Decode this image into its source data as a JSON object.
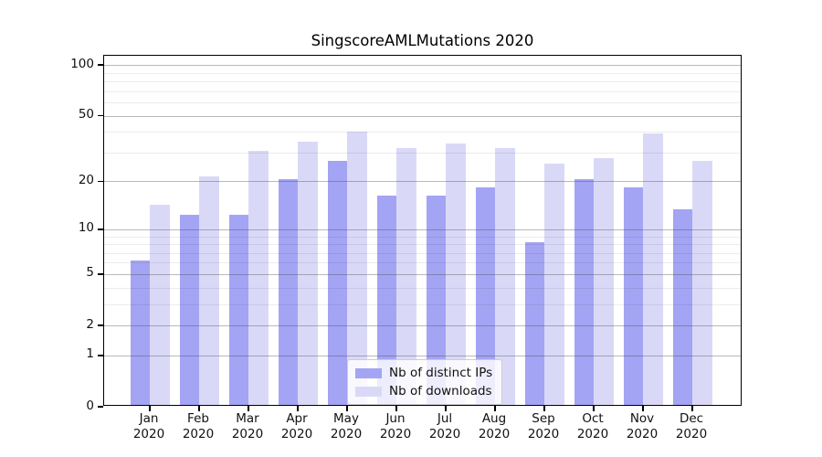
{
  "chart_data": {
    "type": "bar",
    "title": "SingscoreAMLMutations 2020",
    "categories": [
      "Jan",
      "Feb",
      "Mar",
      "Apr",
      "May",
      "Jun",
      "Jul",
      "Aug",
      "Sep",
      "Oct",
      "Nov",
      "Dec"
    ],
    "category_year": "2020",
    "series": [
      {
        "name": "Nb of distinct IPs",
        "color": "#a4a4f4",
        "values": [
          6,
          12,
          12,
          20,
          26,
          16,
          16,
          18,
          8,
          20,
          18,
          13
        ]
      },
      {
        "name": "Nb of downloads",
        "color": "#d9d9f7",
        "values": [
          14,
          21,
          30,
          34,
          39,
          31,
          33,
          31,
          25,
          27,
          38,
          26
        ]
      }
    ],
    "xlabel": "",
    "ylabel": "",
    "y_scale": "log1p",
    "y_major_ticks": [
      100,
      50,
      20,
      10,
      5,
      2,
      1,
      0
    ],
    "y_minor_gridlines": [
      3,
      4,
      6,
      7,
      8,
      9,
      30,
      40,
      60,
      70,
      80,
      90
    ],
    "ylim": [
      0,
      115
    ],
    "grid": "on",
    "grid_above_bars": true,
    "legend_position": "inside-lower-center"
  }
}
